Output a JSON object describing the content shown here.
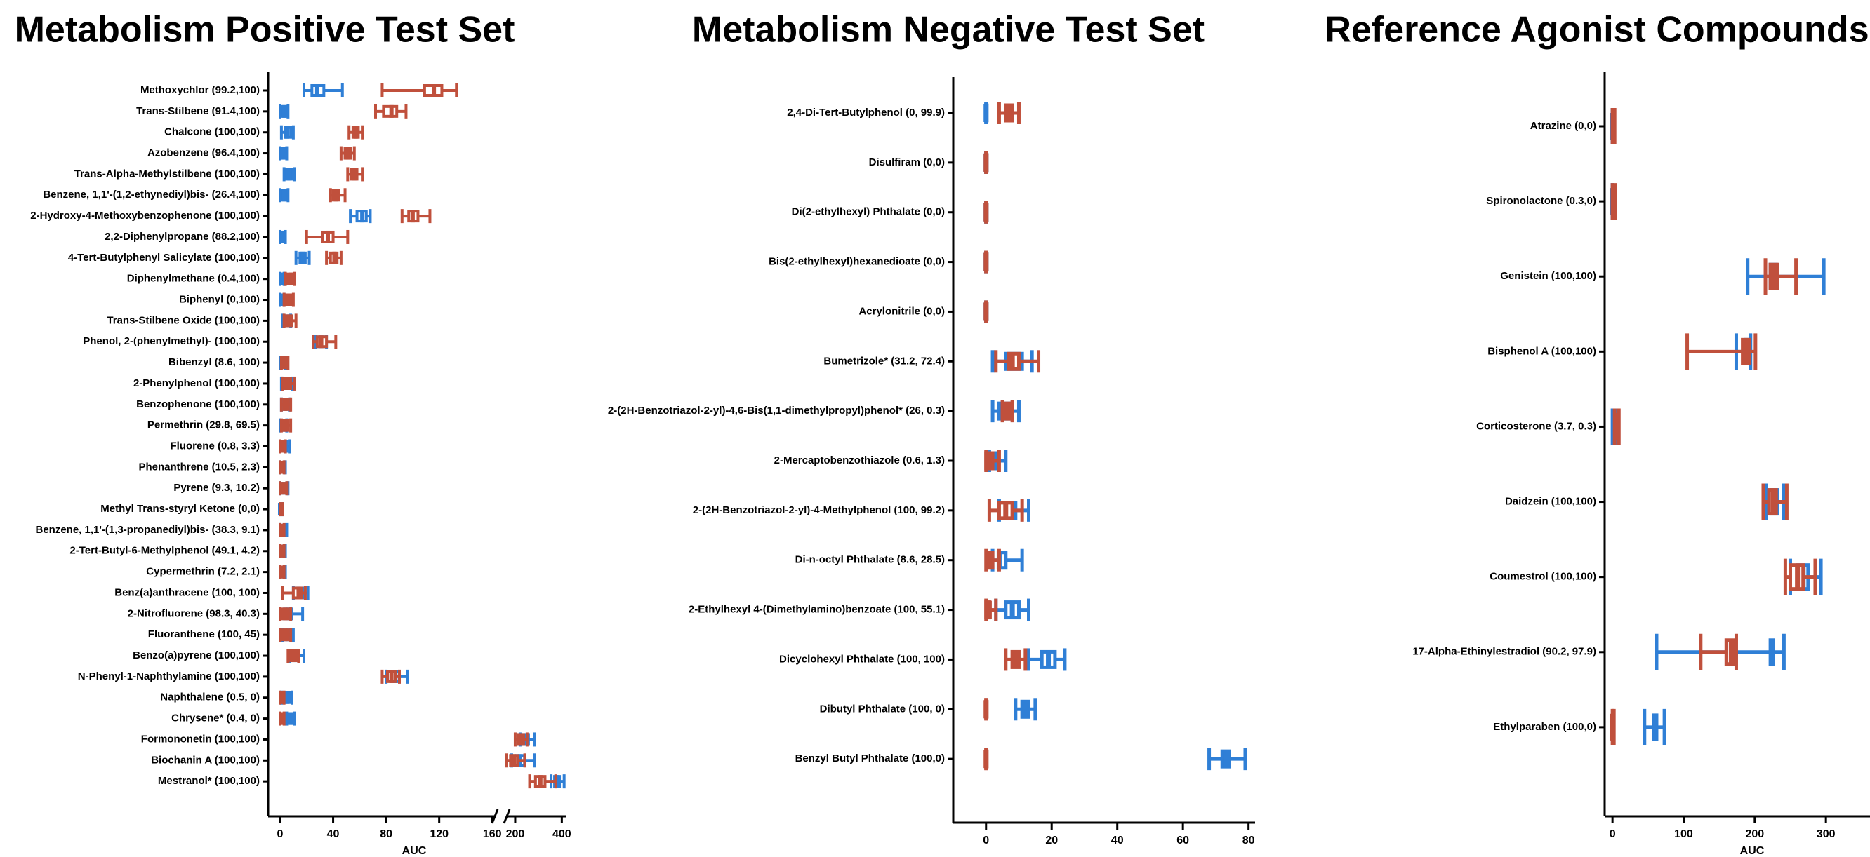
{
  "chart_data": [
    {
      "type": "box",
      "title": "Metabolism Positive Test Set",
      "xlabel": "AUC",
      "categories": [
        "Methoxychlor (99.2,100)",
        "Trans-Stilbene (91.4,100)",
        "Chalcone (100,100)",
        "Azobenzene (96.4,100)",
        "Trans-Alpha-Methylstilbene (100,100)",
        "Benzene, 1,1'-(1,2-ethynediyl)bis- (26.4,100)",
        "2-Hydroxy-4-Methoxybenzophenone (100,100)",
        "2,2-Diphenylpropane (88.2,100)",
        "4-Tert-Butylphenyl Salicylate (100,100)",
        "Diphenylmethane (0.4,100)",
        "Biphenyl (0,100)",
        "Trans-Stilbene Oxide (100,100)",
        "Phenol, 2-(phenylmethyl)- (100,100)",
        "Bibenzyl (8.6, 100)",
        "2-Phenylphenol (100,100)",
        "Benzophenone (100,100)",
        "Permethrin (29.8, 69.5)",
        "Fluorene (0.8, 3.3)",
        "Phenanthrene (10.5, 2.3)",
        "Pyrene (9.3, 10.2)",
        "Methyl Trans-styryl Ketone (0,0)",
        "Benzene, 1,1'-(1,3-propanediyl)bis- (38.3, 9.1)",
        "2-Tert-Butyl-6-Methylphenol (49.1, 4.2)",
        "Cypermethrin (7.2, 2.1)",
        "Benz(a)anthracene (100, 100)",
        "2-Nitrofluorene (98.3, 40.3)",
        "Fluoranthene (100, 45)",
        "Benzo(a)pyrene (100,100)",
        "N-Phenyl-1-Naphthylamine (100,100)",
        "Naphthalene (0.5, 0)",
        "Chrysene* (0.4, 0)",
        "Formononetin (100,100)",
        "Biochanin A (100,100)",
        "Mestranol* (100,100)"
      ],
      "xlim": [
        -9,
        162
      ],
      "xticks": [
        0,
        40,
        80,
        120,
        160
      ],
      "xlim2": [
        164,
        420
      ],
      "xticks2": [
        200,
        400
      ],
      "series": [
        {
          "color": "#2f7fd6",
          "min": [
            18,
            0,
            1,
            0,
            3,
            0,
            53,
            0,
            12,
            0,
            0,
            2,
            27,
            0,
            1,
            1,
            0,
            0,
            0,
            0,
            0,
            0,
            0,
            0,
            10,
            0,
            2,
            7,
            80,
            1,
            5,
            221,
            185,
            354
          ],
          "q1": [
            24,
            1,
            4,
            1,
            5,
            2,
            58,
            1,
            15,
            0,
            0,
            3,
            29,
            1,
            3,
            3,
            1,
            2,
            1,
            1,
            0,
            1,
            1,
            1,
            12,
            3,
            4,
            9,
            84,
            3,
            6,
            236,
            205,
            369
          ],
          "median": [
            28,
            3,
            5,
            2,
            7,
            3,
            62,
            2,
            17,
            1,
            1,
            5,
            31,
            2,
            5,
            4,
            2,
            3,
            2,
            3,
            0,
            2,
            2,
            2,
            14,
            6,
            6,
            12,
            87,
            5,
            8,
            246,
            220,
            379
          ],
          "q3": [
            33,
            5,
            8,
            4,
            9,
            4,
            65,
            3,
            19,
            2,
            2,
            6,
            33,
            3,
            7,
            5,
            3,
            5,
            3,
            4,
            1,
            3,
            3,
            3,
            17,
            9,
            8,
            14,
            90,
            7,
            9,
            257,
            240,
            390
          ],
          "max": [
            47,
            6,
            10,
            5,
            11,
            6,
            68,
            4,
            22,
            3,
            3,
            8,
            35,
            4,
            9,
            7,
            5,
            7,
            4,
            6,
            2,
            5,
            4,
            4,
            21,
            17,
            10,
            18,
            96,
            9,
            11,
            282,
            282,
            410
          ]
        },
        {
          "color": "#c0503c",
          "min": [
            77,
            72,
            52,
            46,
            51,
            38,
            92,
            20,
            35,
            4,
            3,
            3,
            25,
            1,
            2,
            1,
            1,
            0,
            0,
            0,
            0,
            0,
            0,
            0,
            2,
            0,
            0,
            6,
            77,
            0,
            0,
            200,
            164,
            262
          ],
          "q1": [
            109,
            78,
            55,
            49,
            54,
            40,
            97,
            32,
            38,
            6,
            5,
            5,
            28,
            2,
            4,
            3,
            2,
            1,
            1,
            1,
            0,
            1,
            1,
            0,
            10,
            2,
            2,
            8,
            81,
            0,
            0,
            215,
            180,
            287
          ],
          "median": [
            116,
            84,
            57,
            51,
            56,
            42,
            100,
            36,
            41,
            8,
            7,
            7,
            31,
            3,
            6,
            4,
            4,
            2,
            1,
            2,
            1,
            1,
            1,
            1,
            14,
            4,
            4,
            10,
            84,
            1,
            1,
            226,
            195,
            308
          ],
          "q3": [
            122,
            88,
            59,
            53,
            58,
            44,
            104,
            40,
            43,
            9,
            8,
            9,
            35,
            4,
            8,
            6,
            6,
            3,
            2,
            3,
            1,
            2,
            2,
            2,
            16,
            6,
            6,
            12,
            87,
            2,
            2,
            236,
            210,
            328
          ],
          "max": [
            133,
            95,
            62,
            56,
            62,
            49,
            113,
            51,
            46,
            11,
            10,
            12,
            42,
            6,
            11,
            8,
            8,
            4,
            3,
            5,
            2,
            3,
            3,
            3,
            19,
            8,
            8,
            14,
            90,
            3,
            3,
            251,
            241,
            374
          ]
        }
      ]
    },
    {
      "type": "box",
      "title": "Metabolism Negative Test Set",
      "categories": [
        "2,4-Di-Tert-Butylphenol (0, 99.9)",
        "Disulfiram (0,0)",
        "Di(2-ethylhexyl) Phthalate (0,0)",
        "Bis(2-ethylhexyl)hexanedioate (0,0)",
        "Acrylonitrile (0,0)",
        "Bumetrizole* (31.2, 72.4)",
        "2-(2H-Benzotriazol-2-yl)-4,6-Bis(1,1-dimethylpropyl)phenol* (26, 0.3)",
        "2-Mercaptobenzothiazole (0.6, 1.3)",
        "2-(2H-Benzotriazol-2-yl)-4-Methylphenol (100, 99.2)",
        "Di-n-octyl Phthalate (8.6, 28.5)",
        "2-Ethylhexyl 4-(Dimethylamino)benzoate (100, 55.1)",
        "Dicyclohexyl Phthalate (100, 100)",
        "Dibutyl Phthalate (100, 0)",
        "Benzyl Butyl Phthalate (100,0)"
      ],
      "xlim": [
        -10,
        82
      ],
      "xticks": [
        0,
        20,
        40,
        60,
        80
      ],
      "series": [
        {
          "color": "#2f7fd6",
          "min": [
            0,
            0,
            0,
            0,
            0,
            2,
            2,
            1,
            4,
            2,
            3,
            13,
            9,
            68
          ],
          "q1": [
            0,
            0,
            0,
            0,
            0,
            6,
            4,
            2,
            6,
            4,
            6,
            17,
            11,
            72
          ],
          "median": [
            0,
            0,
            0,
            0,
            0,
            9,
            6,
            2,
            8,
            4,
            8,
            19,
            12,
            73
          ],
          "q3": [
            0,
            0,
            0,
            0,
            0,
            11,
            7,
            3,
            9,
            6,
            10,
            21,
            13,
            74
          ],
          "max": [
            0,
            0,
            0,
            0,
            0,
            14,
            10,
            6,
            13,
            11,
            13,
            24,
            15,
            79
          ]
        },
        {
          "color": "#c0503c",
          "min": [
            4,
            0,
            0,
            0,
            0,
            3,
            5,
            0,
            1,
            0,
            0,
            6,
            0,
            0
          ],
          "q1": [
            6,
            0,
            0,
            0,
            0,
            7,
            5,
            0,
            4,
            1,
            0,
            8,
            0,
            0
          ],
          "median": [
            7,
            0,
            0,
            0,
            0,
            8,
            6,
            1,
            6,
            1,
            1,
            9,
            0,
            0
          ],
          "q3": [
            8,
            0,
            0,
            0,
            0,
            10,
            7,
            2,
            8,
            2,
            1,
            10,
            0,
            0
          ],
          "max": [
            10,
            0,
            0,
            0,
            0,
            16,
            8,
            4,
            11,
            4,
            3,
            12,
            0,
            0
          ]
        }
      ]
    },
    {
      "type": "box",
      "title": "Reference Agonist Compounds",
      "xlabel": "AUC",
      "categories": [
        "Atrazine (0,0)",
        "Spironolactone (0.3,0)",
        "Genistein (100,100)",
        "Bisphenol A (100,100)",
        "Corticosterone (3.7, 0.3)",
        "Daidzein (100,100)",
        "Coumestrol (100,100)",
        "17-Alpha-Ethinylestradiol (90.2, 97.9)",
        "Ethylparaben (100,0)"
      ],
      "xlim": [
        -11,
        362
      ],
      "xticks": [
        0,
        100,
        200,
        300
      ],
      "series": [
        {
          "color": "#2f7fd6",
          "min": [
            0,
            0,
            190,
            174,
            0,
            216,
            250,
            62,
            45
          ],
          "q1": [
            0,
            0,
            222,
            187,
            1,
            224,
            260,
            222,
            58
          ],
          "median": [
            0,
            0,
            225,
            190,
            2,
            228,
            268,
            224,
            60
          ],
          "q3": [
            0,
            0,
            230,
            192,
            4,
            232,
            275,
            226,
            62
          ],
          "max": [
            0,
            0,
            297,
            194,
            6,
            241,
            293,
            241,
            73
          ]
        },
        {
          "color": "#c0503c",
          "min": [
            0,
            0,
            215,
            105,
            3,
            212,
            243,
            124,
            0
          ],
          "q1": [
            0,
            0,
            222,
            183,
            5,
            220,
            250,
            160,
            0
          ],
          "median": [
            1,
            1,
            228,
            188,
            7,
            226,
            260,
            167,
            0
          ],
          "q3": [
            2,
            2,
            232,
            192,
            8,
            230,
            268,
            171,
            1
          ],
          "max": [
            3,
            4,
            258,
            201,
            9,
            245,
            285,
            174,
            2
          ]
        }
      ]
    }
  ]
}
